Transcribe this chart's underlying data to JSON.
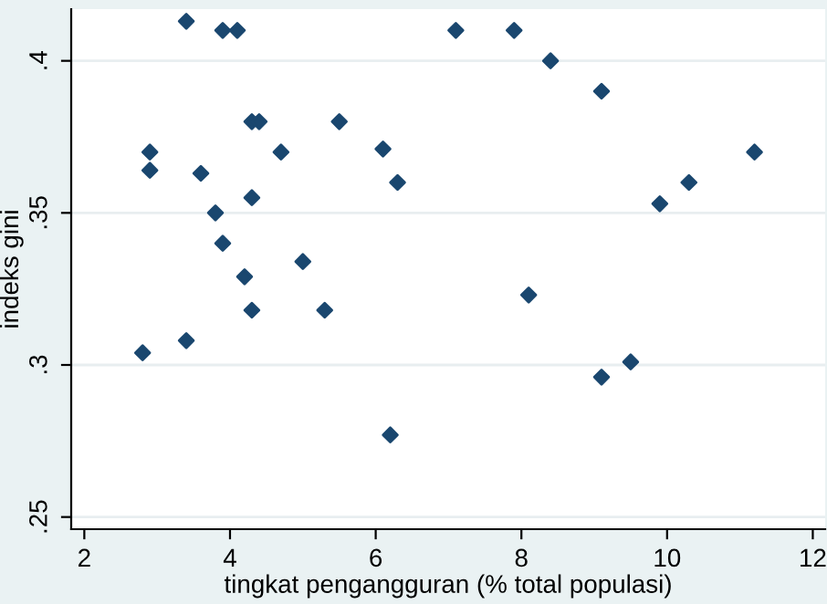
{
  "chart_data": {
    "type": "scatter",
    "xlabel": "tingkat pengangguran (% total populasi)",
    "ylabel": "indeks gini",
    "x": [
      3.4,
      3.9,
      4.1,
      7.1,
      7.9,
      8.4,
      9.1,
      4.3,
      4.4,
      5.5,
      2.9,
      4.7,
      6.1,
      11.2,
      2.9,
      3.6,
      6.3,
      10.3,
      9.9,
      4.3,
      3.8,
      3.9,
      5.0,
      4.2,
      8.1,
      4.3,
      5.3,
      2.8,
      3.4,
      9.5,
      9.1,
      6.2
    ],
    "series": [
      {
        "color": "#1a476f",
        "values": [
          0.413,
          0.41,
          0.41,
          0.41,
          0.41,
          0.4,
          0.39,
          0.38,
          0.38,
          0.38,
          0.37,
          0.37,
          0.371,
          0.37,
          0.364,
          0.363,
          0.36,
          0.36,
          0.353,
          0.355,
          0.35,
          0.34,
          0.334,
          0.329,
          0.323,
          0.318,
          0.318,
          0.304,
          0.308,
          0.301,
          0.296,
          0.277
        ]
      }
    ],
    "xlim": [
      1.82,
      12.17
    ],
    "ylim": [
      0.246,
      0.417
    ],
    "xticks": [
      2,
      4,
      6,
      8,
      10,
      12
    ],
    "yticks": [
      {
        "value": 0.25,
        "label": ".25"
      },
      {
        "value": 0.3,
        "label": ".3"
      },
      {
        "value": 0.35,
        "label": ".35"
      },
      {
        "value": 0.4,
        "label": ".4"
      }
    ],
    "grid": "y",
    "marker": "diamond",
    "legend": false
  }
}
